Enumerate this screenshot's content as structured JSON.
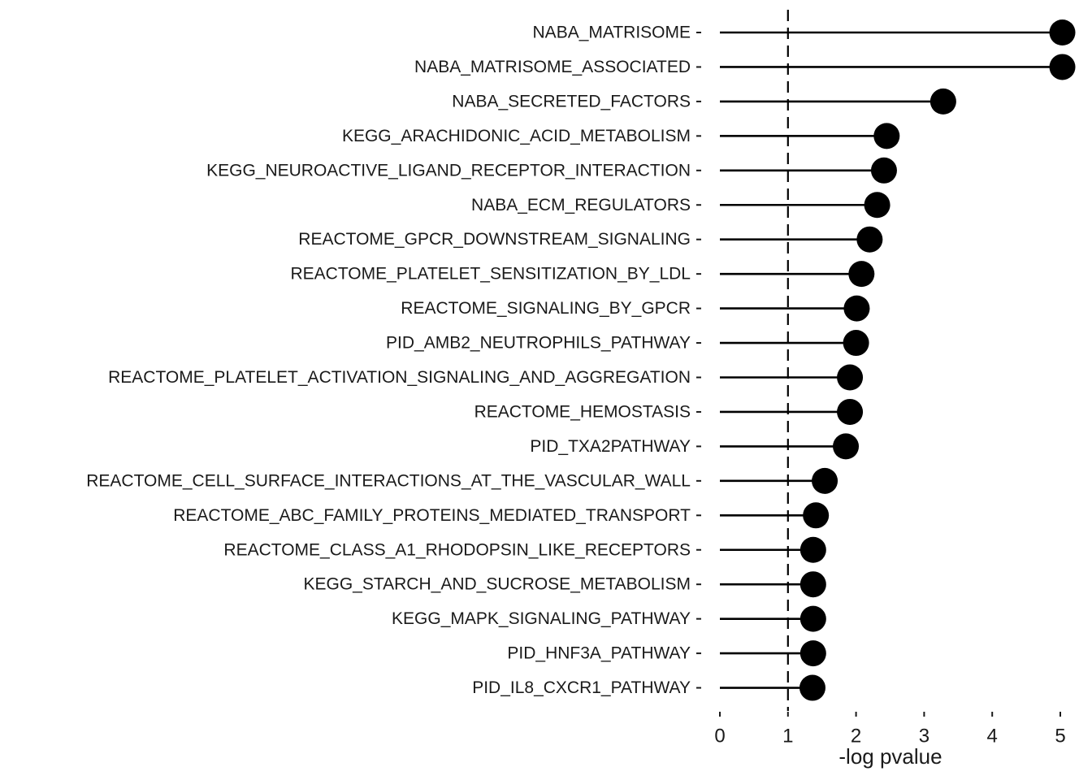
{
  "chart_data": {
    "type": "lollipop",
    "categories": [
      "NABA_MATRISOME",
      "NABA_MATRISOME_ASSOCIATED",
      "NABA_SECRETED_FACTORS",
      "KEGG_ARACHIDONIC_ACID_METABOLISM",
      "KEGG_NEUROACTIVE_LIGAND_RECEPTOR_INTERACTION",
      "NABA_ECM_REGULATORS",
      "REACTOME_GPCR_DOWNSTREAM_SIGNALING",
      "REACTOME_PLATELET_SENSITIZATION_BY_LDL",
      "REACTOME_SIGNALING_BY_GPCR",
      "PID_AMB2_NEUTROPHILS_PATHWAY",
      "REACTOME_PLATELET_ACTIVATION_SIGNALING_AND_AGGREGATION",
      "REACTOME_HEMOSTASIS",
      "PID_TXA2PATHWAY",
      "REACTOME_CELL_SURFACE_INTERACTIONS_AT_THE_VASCULAR_WALL",
      "REACTOME_ABC_FAMILY_PROTEINS_MEDIATED_TRANSPORT",
      "REACTOME_CLASS_A1_RHODOPSIN_LIKE_RECEPTORS",
      "KEGG_STARCH_AND_SUCROSE_METABOLISM",
      "KEGG_MAPK_SIGNALING_PATHWAY",
      "PID_HNF3A_PATHWAY",
      "PID_IL8_CXCR1_PATHWAY"
    ],
    "values": [
      5.03,
      5.03,
      3.28,
      2.45,
      2.41,
      2.31,
      2.2,
      2.08,
      2.01,
      2.0,
      1.91,
      1.91,
      1.85,
      1.54,
      1.41,
      1.37,
      1.37,
      1.37,
      1.37,
      1.36
    ],
    "xlabel": "-log pvalue",
    "xlim": [
      0,
      5.03
    ],
    "xticks": [
      0,
      1,
      2,
      3,
      4,
      5
    ],
    "reference_line": 1,
    "grid": false,
    "colors": {
      "marker": "#000000",
      "text": "#1a1a1a"
    }
  }
}
